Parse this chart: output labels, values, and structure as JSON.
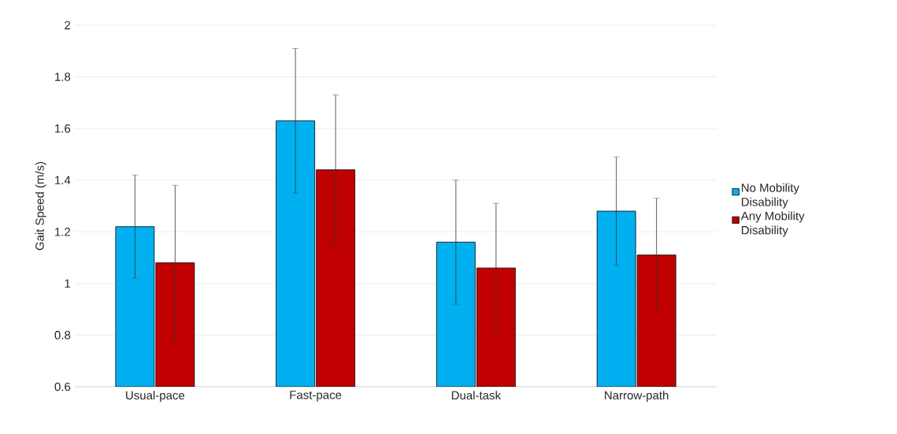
{
  "chart_data": {
    "type": "bar",
    "ylabel": "Gait Speed (m/s)",
    "categories": [
      "Usual-pace",
      "Fast-pace",
      "Dual-task",
      "Narrow-path"
    ],
    "series": [
      {
        "name": "No Mobility Disability",
        "color": "#00b0f0",
        "values": [
          1.22,
          1.63,
          1.16,
          1.28
        ],
        "errors": [
          0.2,
          0.28,
          0.24,
          0.21
        ]
      },
      {
        "name": "Any Mobility Disability",
        "color": "#c00000",
        "values": [
          1.08,
          1.44,
          1.06,
          1.11
        ],
        "errors": [
          0.3,
          0.29,
          0.25,
          0.22
        ]
      }
    ],
    "ylim": [
      0.6,
      2
    ],
    "yticks": [
      0.6,
      0.8,
      1,
      1.2,
      1.4,
      1.6,
      1.8,
      2
    ],
    "grid": "y",
    "legend": "right"
  }
}
